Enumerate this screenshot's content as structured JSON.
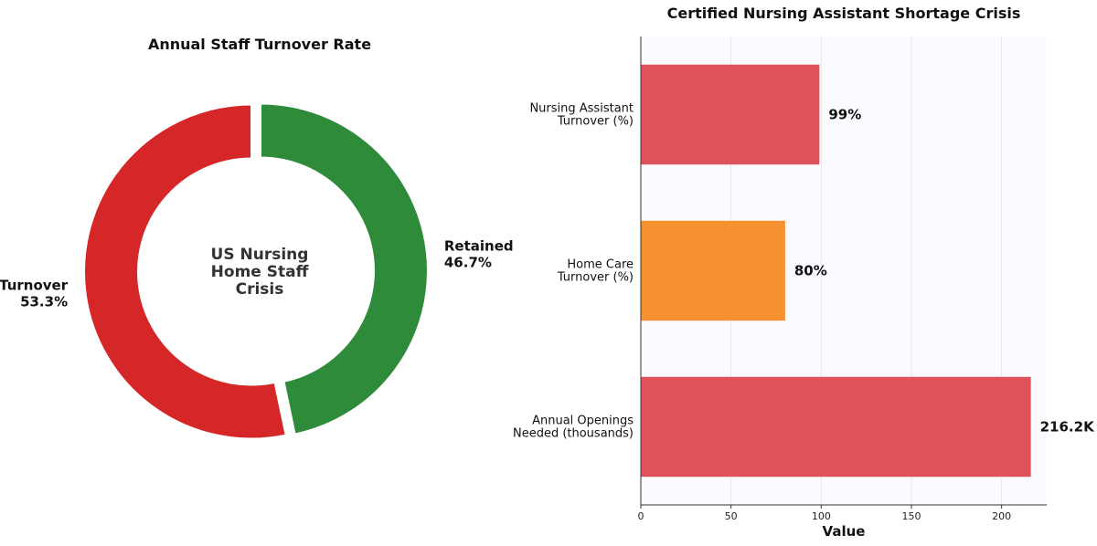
{
  "chart_data": [
    {
      "type": "pie",
      "title": "Annual Staff Turnover Rate",
      "center_text": [
        "US Nursing",
        "Home Staff",
        "Crisis"
      ],
      "slices": [
        {
          "name": "Turnover",
          "value": 53.3,
          "label": "53.3%",
          "color": "#d62728"
        },
        {
          "name": "Retained",
          "value": 46.7,
          "label": "46.7%",
          "color": "#2e8b3a"
        }
      ]
    },
    {
      "type": "bar",
      "orientation": "horizontal",
      "title": "Certified Nursing Assistant Shortage Crisis",
      "xlabel": "Value",
      "xlim": [
        0,
        225
      ],
      "xticks": [
        0,
        50,
        100,
        150,
        200
      ],
      "grid": true,
      "categories": [
        {
          "lines": [
            "Nursing Assistant",
            "Turnover (%)"
          ],
          "value": 99,
          "label": "99%",
          "color": "#e0525a"
        },
        {
          "lines": [
            "Home Care",
            "Turnover (%)"
          ],
          "value": 80,
          "label": "80%",
          "color": "#f7912f"
        },
        {
          "lines": [
            "Annual Openings",
            "Needed (thousands)"
          ],
          "value": 216.2,
          "label": "216.2K",
          "color": "#e0525a"
        }
      ]
    }
  ]
}
